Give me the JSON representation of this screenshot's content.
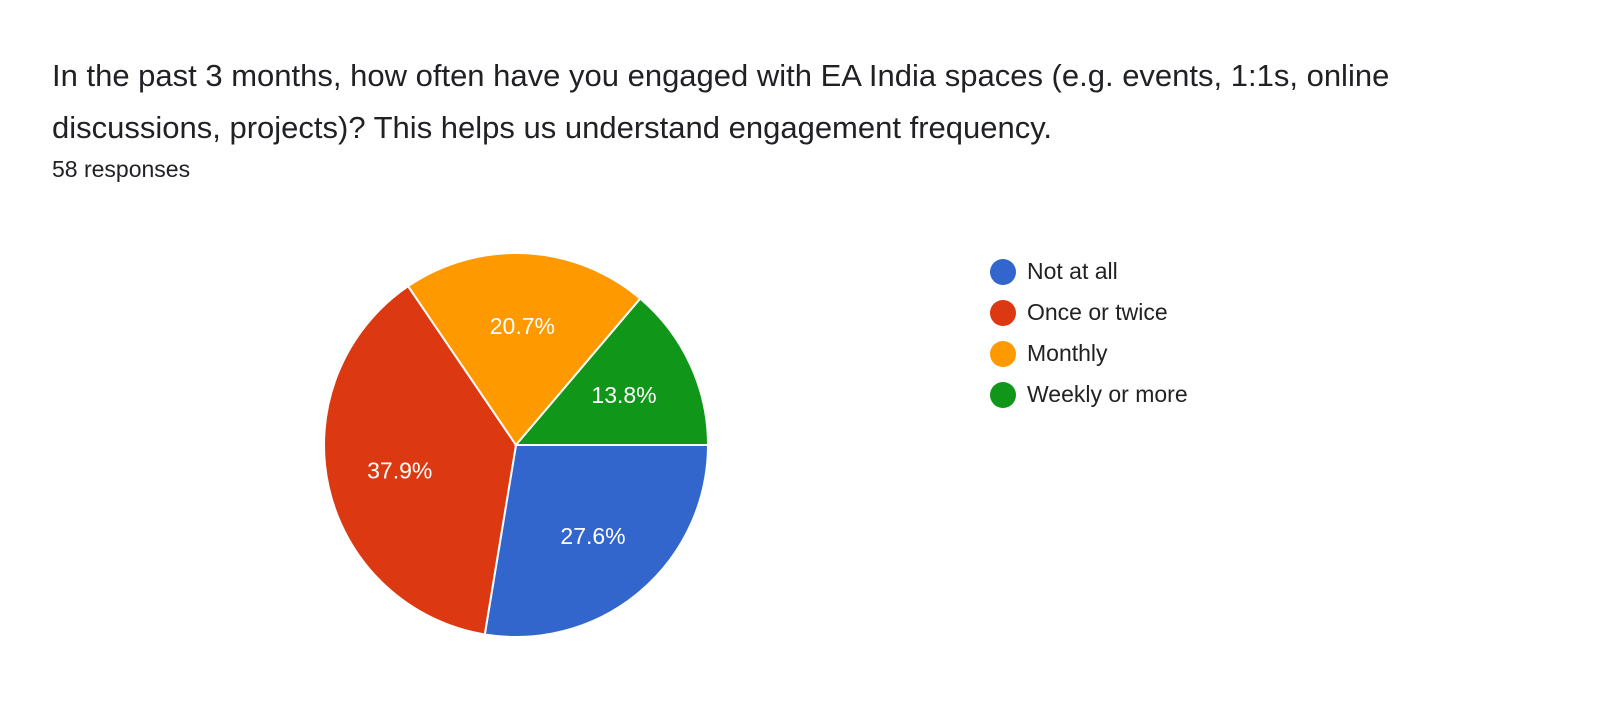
{
  "question": {
    "title": "In the past 3 months, how often have you engaged with EA India spaces (e.g. events, 1:1s, online discussions, projects)? This helps us understand engagement frequency.",
    "response_count": "58 responses"
  },
  "legend": {
    "items": [
      {
        "label": "Not at all",
        "color": "#3366cc"
      },
      {
        "label": "Once or twice",
        "color": "#dc3912"
      },
      {
        "label": "Monthly",
        "color": "#ff9900"
      },
      {
        "label": "Weekly or more",
        "color": "#109618"
      }
    ]
  },
  "chart_data": {
    "type": "pie",
    "title": "In the past 3 months, how often have you engaged with EA India spaces (e.g. events, 1:1s, online discussions, projects)? This helps us understand engagement frequency.",
    "subtitle": "58 responses",
    "categories": [
      "Not at all",
      "Once or twice",
      "Monthly",
      "Weekly or more"
    ],
    "values": [
      27.6,
      37.9,
      20.7,
      13.8
    ],
    "labels": [
      "27.6%",
      "37.9%",
      "20.7%",
      "13.8%"
    ],
    "colors": [
      "#3366cc",
      "#dc3912",
      "#ff9900",
      "#109618"
    ],
    "legend_position": "right"
  }
}
